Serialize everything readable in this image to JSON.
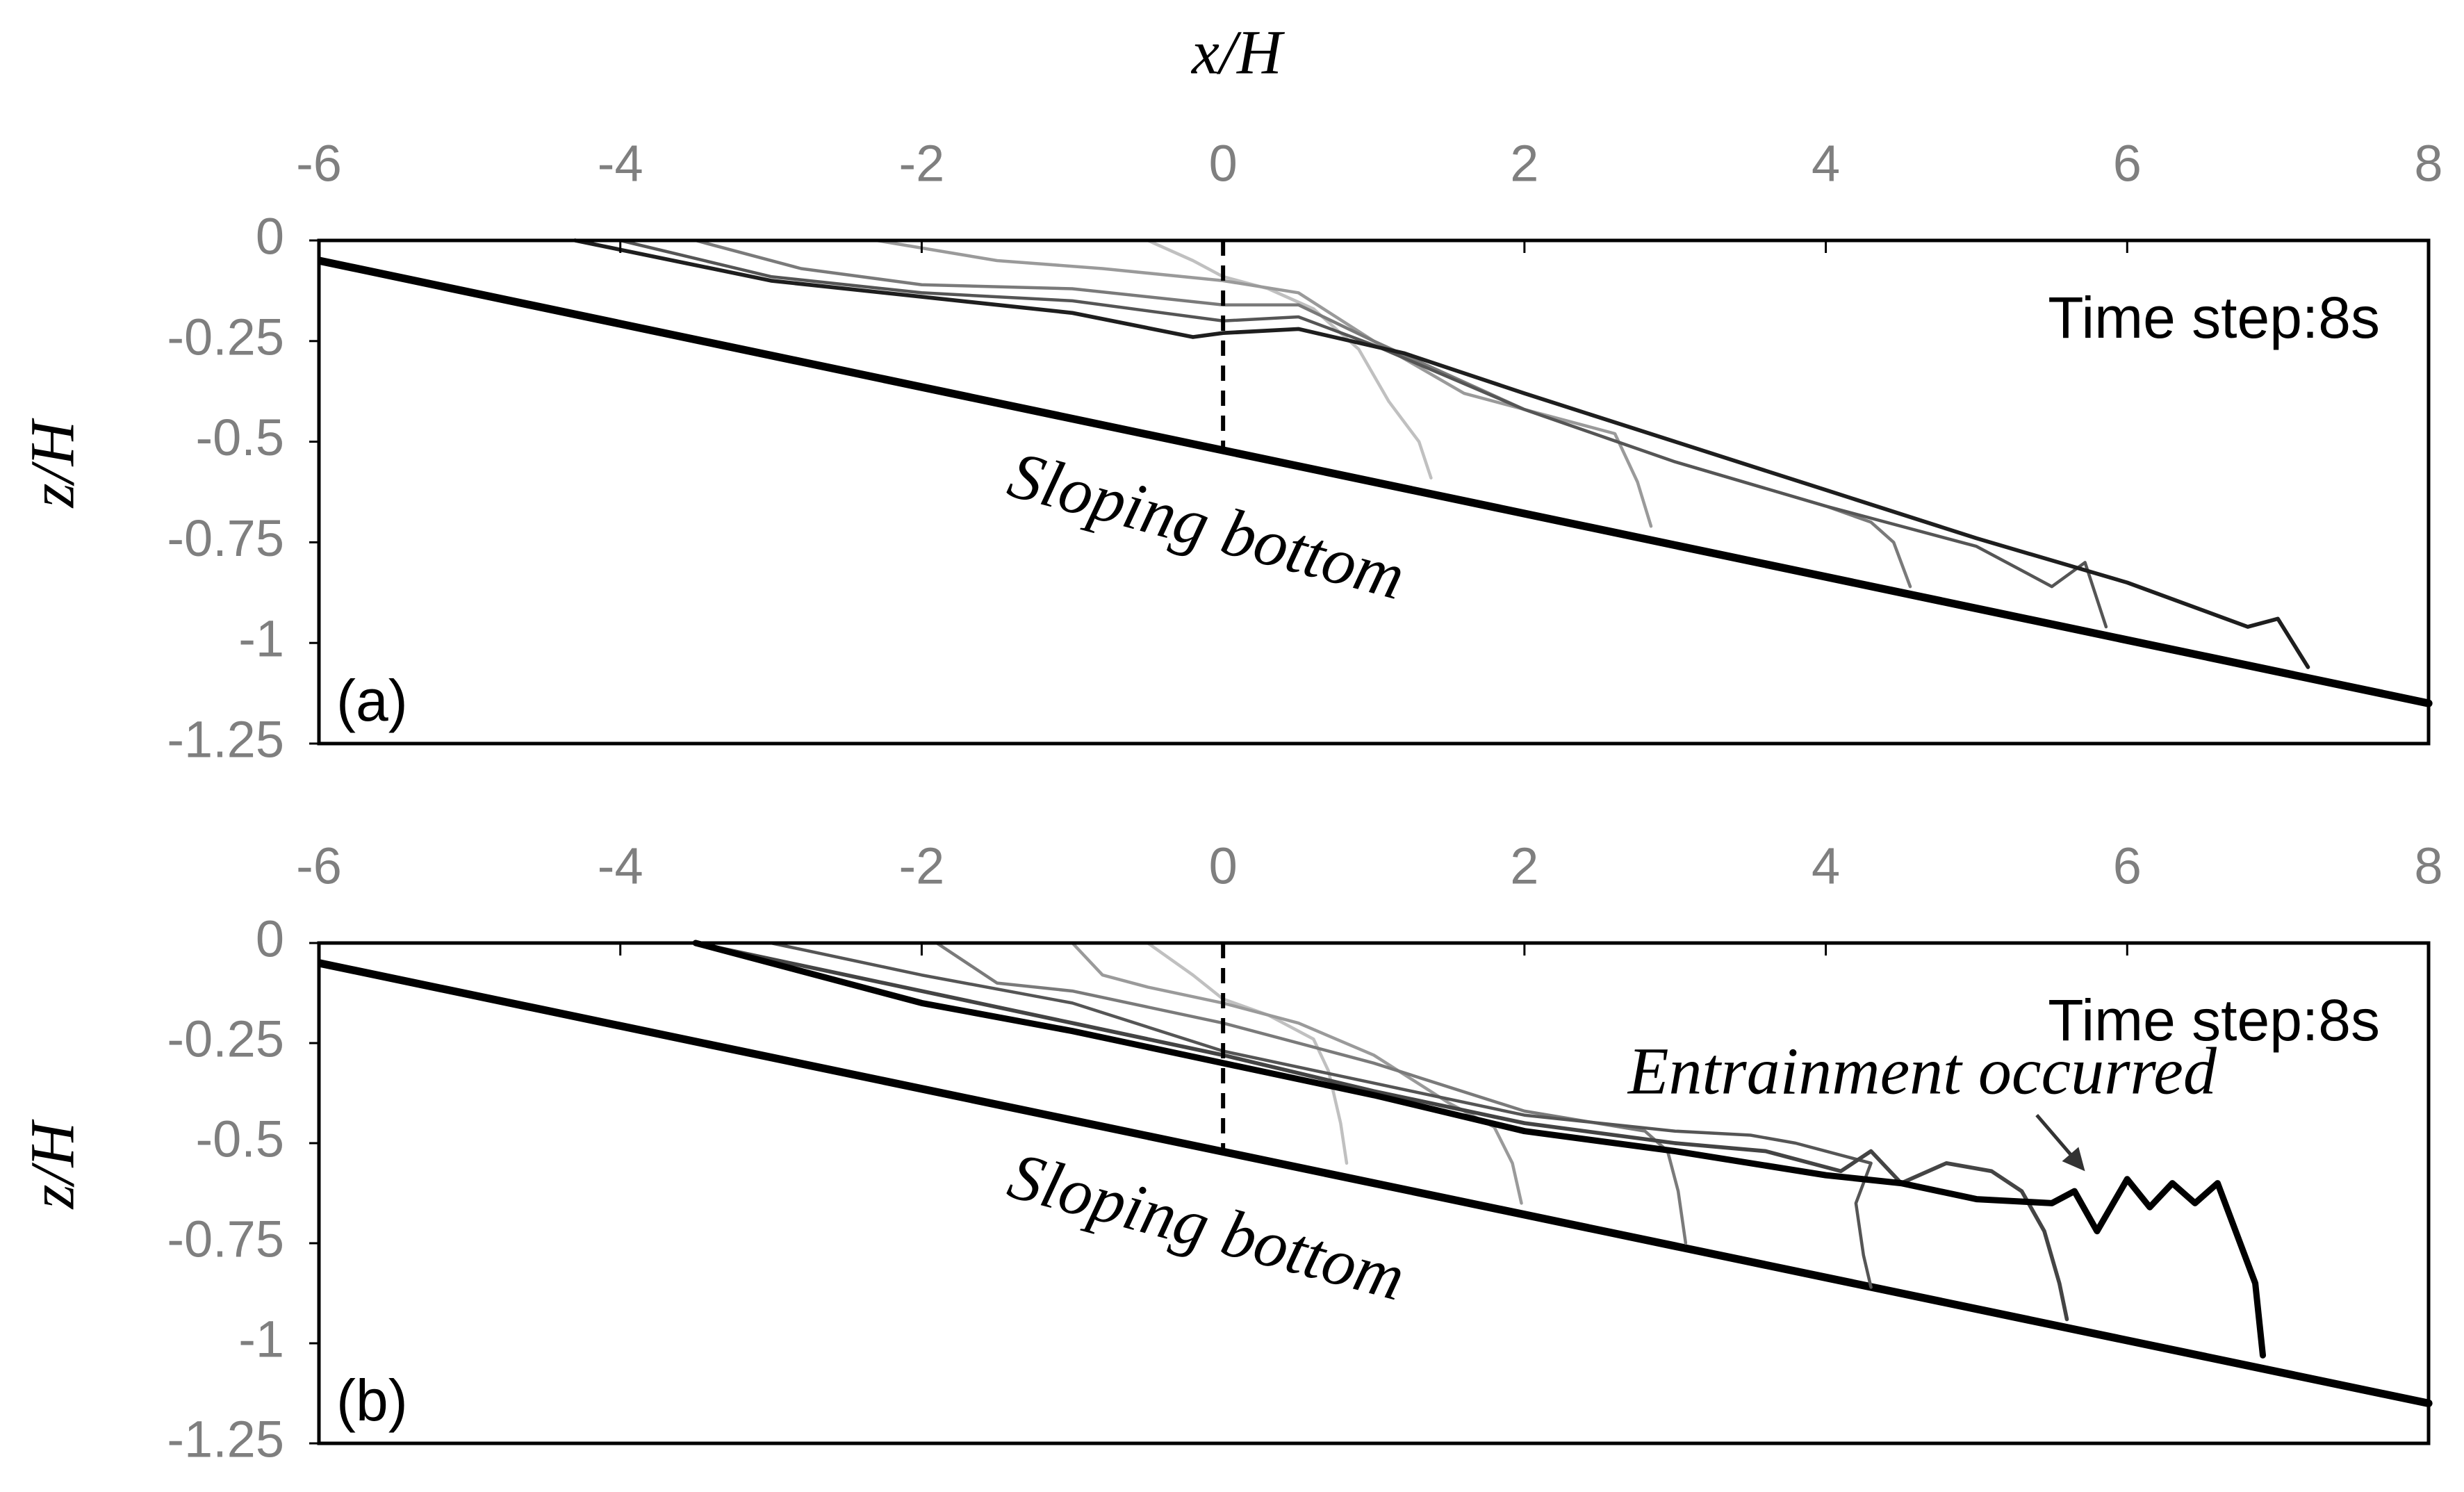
{
  "chart_data": [
    {
      "type": "line",
      "x_label": "x/H",
      "y_label": "z/H",
      "panel_label": "(a)",
      "time_label": "Time step:8s",
      "bottom_label": "Sloping bottom",
      "xlim": [
        -6,
        8
      ],
      "xticks": [
        -6,
        -4,
        -2,
        0,
        2,
        4,
        6,
        8
      ],
      "ylim": [
        -1.25,
        0
      ],
      "yticks": [
        0,
        -0.25,
        -0.5,
        -0.75,
        -1,
        -1.25
      ],
      "vertical_line": {
        "x": [
          0,
          0
        ],
        "values": [
          0,
          -0.52
        ],
        "color": "#000000"
      },
      "series": [
        {
          "color": "#000000",
          "width": 5,
          "x": [
            -6,
            8
          ],
          "values": [
            -0.05,
            -1.15
          ]
        },
        {
          "color": "#c0c0c0",
          "width": 2,
          "x": [
            -0.5,
            -0.2,
            0,
            0.3,
            0.6,
            0.9,
            1.1,
            1.3,
            1.38
          ],
          "values": [
            0,
            -0.05,
            -0.09,
            -0.12,
            -0.17,
            -0.27,
            -0.4,
            -0.5,
            -0.59
          ]
        },
        {
          "color": "#9a9a9a",
          "width": 2,
          "x": [
            -2.3,
            -1.5,
            -0.8,
            0,
            0.5,
            1,
            1.6,
            2.2,
            2.6,
            2.75,
            2.84
          ],
          "values": [
            0,
            -0.05,
            -0.07,
            -0.1,
            -0.13,
            -0.25,
            -0.38,
            -0.44,
            -0.48,
            -0.6,
            -0.71
          ]
        },
        {
          "color": "#7a7a7a",
          "width": 2,
          "x": [
            -3.5,
            -2.8,
            -2,
            -1,
            0,
            0.5,
            1,
            2,
            3,
            4,
            4.3,
            4.45,
            4.56
          ],
          "values": [
            0,
            -0.07,
            -0.11,
            -0.12,
            -0.16,
            -0.16,
            -0.25,
            -0.42,
            -0.55,
            -0.66,
            -0.7,
            -0.75,
            -0.86
          ]
        },
        {
          "color": "#555555",
          "width": 2,
          "x": [
            -4,
            -3,
            -2,
            -1,
            0,
            0.5,
            1,
            2,
            3,
            4,
            5,
            5.5,
            5.72,
            5.86
          ],
          "values": [
            0,
            -0.09,
            -0.13,
            -0.15,
            -0.2,
            -0.19,
            -0.26,
            -0.42,
            -0.55,
            -0.66,
            -0.76,
            -0.86,
            -0.8,
            -0.96
          ]
        },
        {
          "color": "#1e1e1e",
          "width": 2.5,
          "x": [
            -4.3,
            -3,
            -2,
            -1,
            -0.2,
            0,
            0.5,
            1.2,
            2,
            3,
            4,
            5,
            6,
            6.8,
            7,
            7.2
          ],
          "values": [
            0,
            -0.1,
            -0.14,
            -0.18,
            -0.24,
            -0.23,
            -0.22,
            -0.28,
            -0.38,
            -0.5,
            -0.62,
            -0.74,
            -0.85,
            -0.96,
            -0.94,
            -1.06
          ]
        }
      ]
    },
    {
      "type": "line",
      "y_label": "z/H",
      "panel_label": "(b)",
      "time_label": "Time step:8s",
      "bottom_label": "Sloping bottom",
      "note": "Entrainment occurred",
      "xlim": [
        -6,
        8
      ],
      "xticks": [
        -6,
        -4,
        -2,
        0,
        2,
        4,
        6,
        8
      ],
      "ylim": [
        -1.25,
        0
      ],
      "yticks": [
        0,
        -0.25,
        -0.5,
        -0.75,
        -1,
        -1.25
      ],
      "vertical_line": {
        "x": [
          0,
          0
        ],
        "values": [
          0,
          -0.52
        ],
        "color": "#000000"
      },
      "arrow": {
        "x": [
          5.4,
          5.72
        ],
        "values": [
          -0.43,
          -0.57
        ]
      },
      "series": [
        {
          "color": "#000000",
          "width": 5,
          "x": [
            -6,
            8
          ],
          "values": [
            -0.05,
            -1.15
          ]
        },
        {
          "color": "#c0c0c0",
          "width": 2,
          "x": [
            -0.5,
            -0.2,
            0,
            0.3,
            0.6,
            0.7,
            0.78,
            0.82
          ],
          "values": [
            0,
            -0.08,
            -0.14,
            -0.18,
            -0.24,
            -0.32,
            -0.45,
            -0.55
          ]
        },
        {
          "color": "#9a9a9a",
          "width": 2,
          "x": [
            -1,
            -0.8,
            -0.5,
            0,
            0.5,
            1,
            1.5,
            1.8,
            1.92,
            1.98
          ],
          "values": [
            0,
            -0.08,
            -0.11,
            -0.15,
            -0.2,
            -0.28,
            -0.4,
            -0.46,
            -0.55,
            -0.65
          ]
        },
        {
          "color": "#7a7a7a",
          "width": 2,
          "x": [
            -1.9,
            -1.5,
            -1,
            0,
            1,
            2,
            2.8,
            2.95,
            3.02,
            3.07
          ],
          "values": [
            0,
            -0.1,
            -0.12,
            -0.2,
            -0.3,
            -0.42,
            -0.47,
            -0.52,
            -0.62,
            -0.75
          ]
        },
        {
          "color": "#555555",
          "width": 2,
          "x": [
            -3,
            -2,
            -1,
            0,
            1,
            2,
            3,
            3.5,
            3.8,
            4.1,
            4.3,
            4.2,
            4.25,
            4.3
          ],
          "values": [
            0,
            -0.08,
            -0.15,
            -0.27,
            -0.35,
            -0.43,
            -0.47,
            -0.48,
            -0.5,
            -0.53,
            -0.55,
            -0.65,
            -0.78,
            -0.86
          ]
        },
        {
          "color": "#444444",
          "width": 2.5,
          "x": [
            -3.5,
            -2,
            -1,
            0,
            1,
            2,
            3,
            3.6,
            4.1,
            4.3,
            4.5,
            4.8,
            5.1,
            5.3,
            5.45,
            5.55,
            5.6
          ],
          "values": [
            0,
            -0.12,
            -0.2,
            -0.28,
            -0.37,
            -0.45,
            -0.5,
            -0.52,
            -0.57,
            -0.52,
            -0.6,
            -0.55,
            -0.57,
            -0.62,
            -0.72,
            -0.85,
            -0.94
          ]
        },
        {
          "color": "#000000",
          "width": 4,
          "x": [
            -3.5,
            -2,
            -1,
            0,
            1,
            2,
            3,
            4,
            4.5,
            5,
            5.5,
            5.65,
            5.8,
            6,
            6.15,
            6.3,
            6.45,
            6.6,
            6.75,
            6.85,
            6.9
          ],
          "values": [
            0,
            -0.15,
            -0.22,
            -0.3,
            -0.38,
            -0.47,
            -0.52,
            -0.58,
            -0.6,
            -0.64,
            -0.65,
            -0.62,
            -0.72,
            -0.59,
            -0.66,
            -0.6,
            -0.65,
            -0.6,
            -0.75,
            -0.85,
            -1.03
          ]
        }
      ]
    }
  ]
}
